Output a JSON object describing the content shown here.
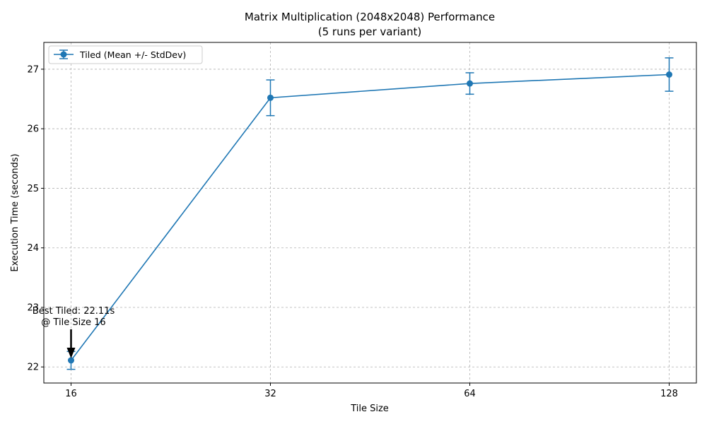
{
  "chart_data": {
    "type": "line",
    "title": "Matrix Multiplication (2048x2048) Performance",
    "subtitle": "(5 runs per variant)",
    "xlabel": "Tile Size",
    "ylabel": "Execution Time (seconds)",
    "x_scale": "log2",
    "x": [
      16,
      32,
      64,
      128
    ],
    "x_tick_labels": [
      "16",
      "32",
      "64",
      "128"
    ],
    "y_ticks": [
      22,
      23,
      24,
      25,
      26,
      27
    ],
    "y_tick_labels": [
      "22",
      "23",
      "24",
      "25",
      "26",
      "27"
    ],
    "ylim": [
      21.73,
      27.45
    ],
    "grid": true,
    "legend_position": "top-left",
    "series": [
      {
        "name": "Tiled (Mean +/- StdDev)",
        "values": [
          22.11,
          26.52,
          26.76,
          26.91
        ],
        "stddev": [
          0.15,
          0.3,
          0.18,
          0.28
        ],
        "color": "#1f77b4",
        "marker": "circle",
        "error_bars": true
      }
    ],
    "annotation": {
      "line1": "Best Tiled: 22.11s",
      "line2": "@ Tile Size 16",
      "x": 16,
      "y": 22.11
    }
  }
}
